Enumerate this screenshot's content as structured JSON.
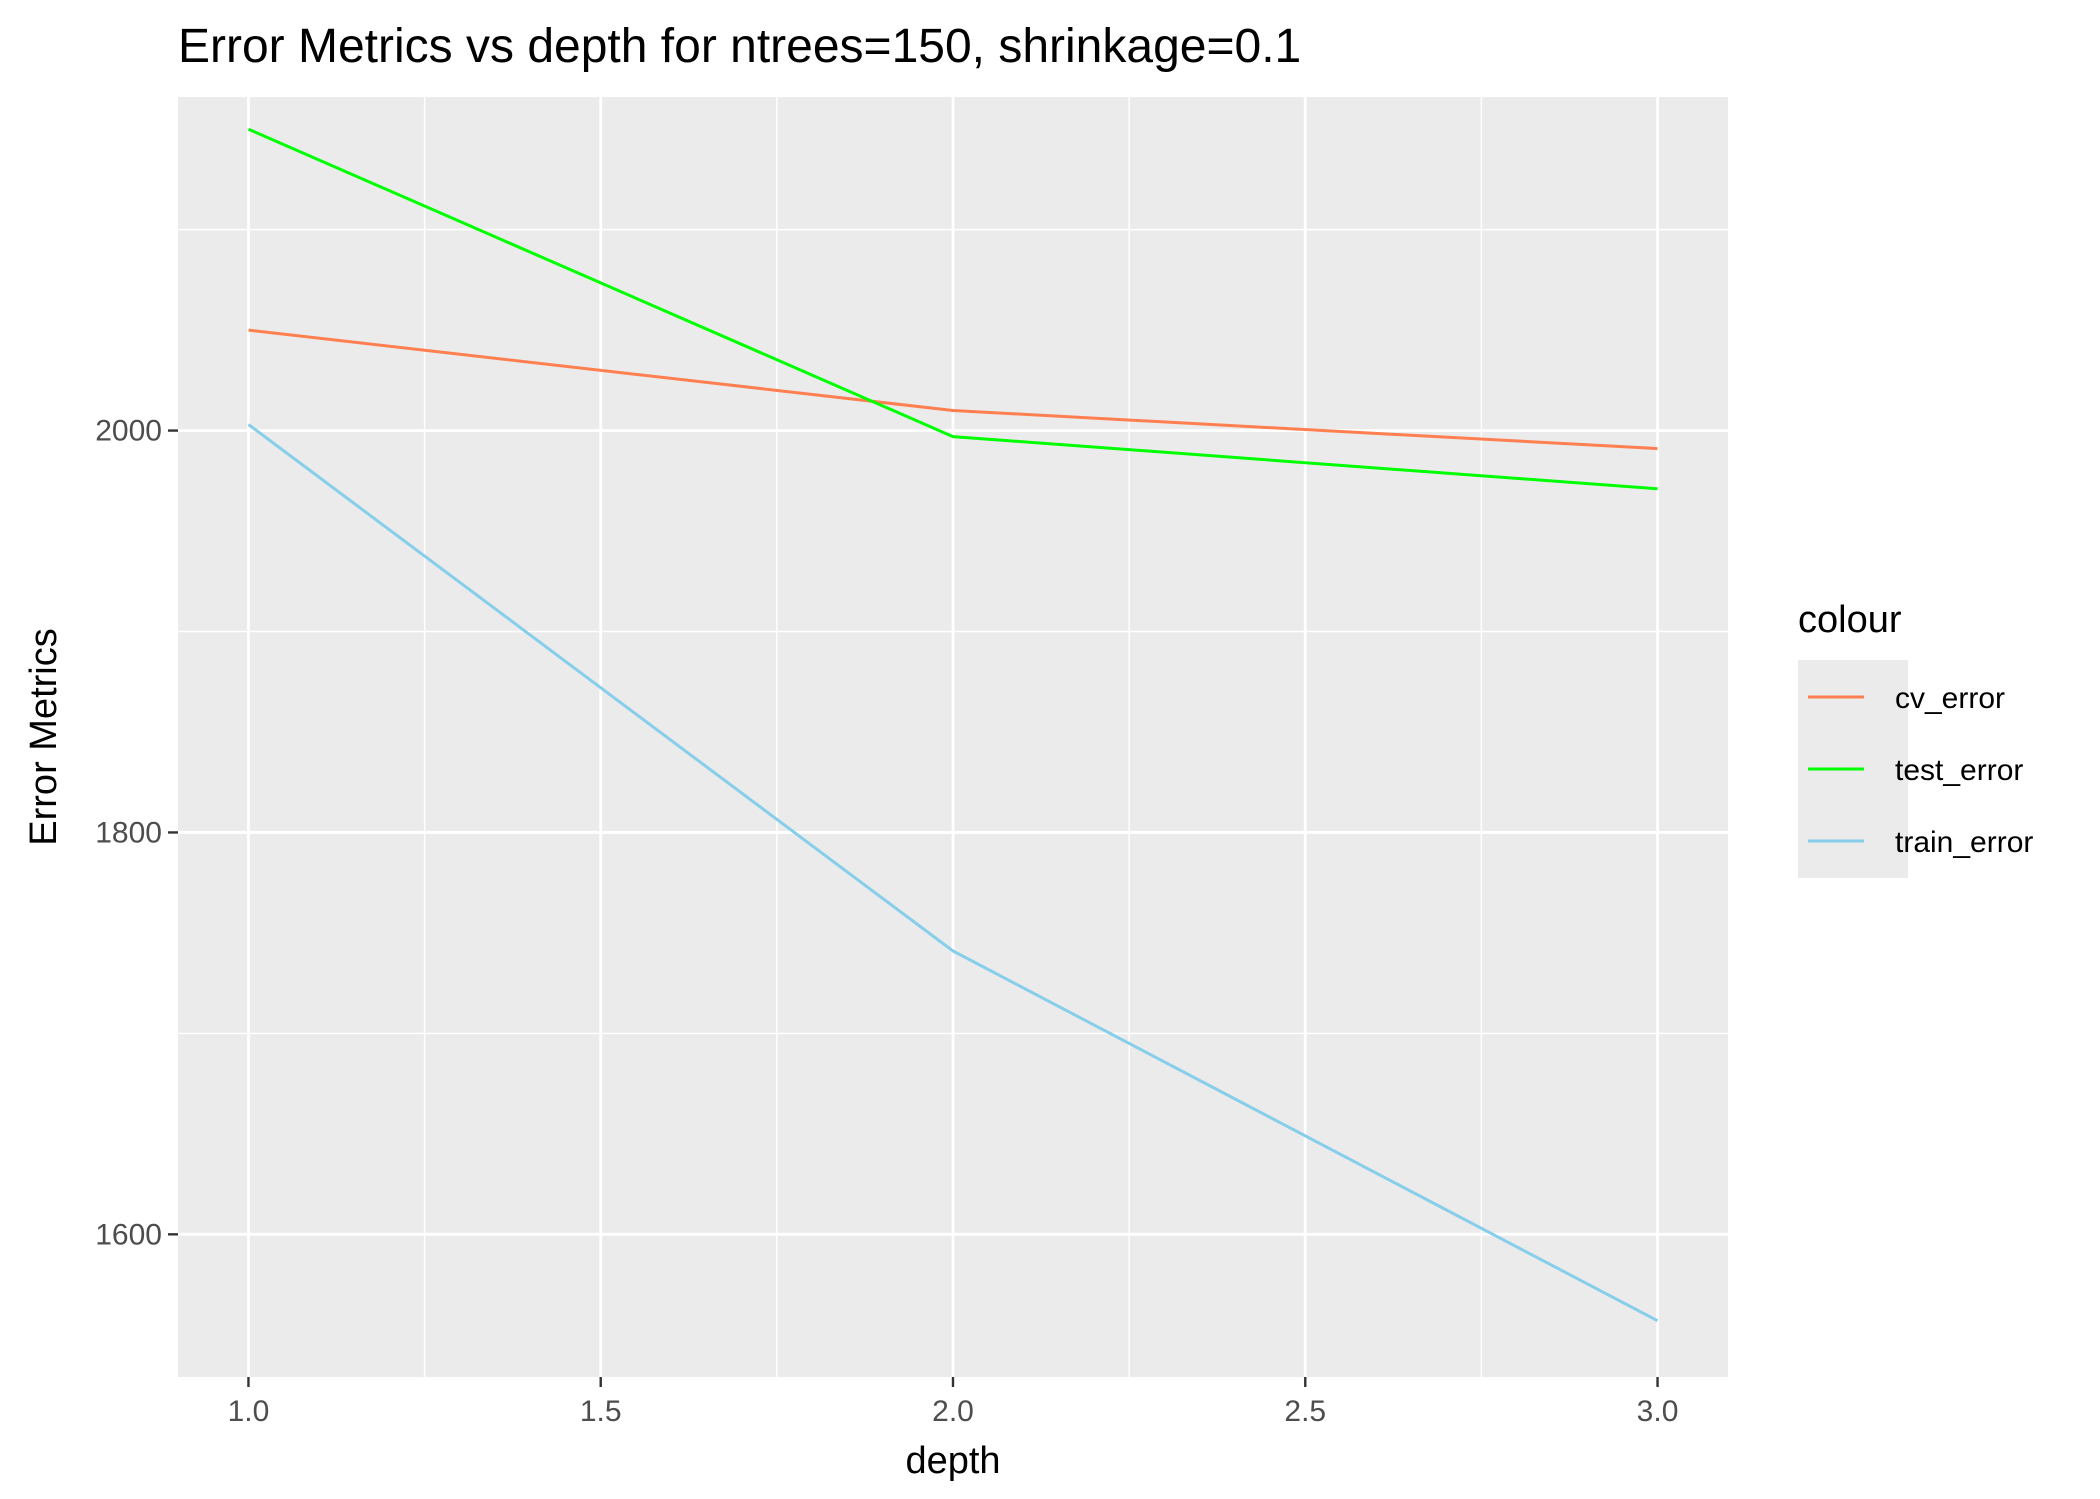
{
  "chart_data": {
    "type": "line",
    "title": "Error Metrics vs depth for ntrees=150, shrinkage=0.1",
    "xlabel": "depth",
    "ylabel": "Error Metrics",
    "x": [
      1.0,
      2.0,
      3.0
    ],
    "x_ticks": [
      "1.0",
      "1.5",
      "2.0",
      "2.5",
      "3.0"
    ],
    "y_ticks": [
      "1600",
      "1800",
      "2000"
    ],
    "xlim": [
      0.9,
      3.1
    ],
    "ylim": [
      1529,
      2166
    ],
    "series": [
      {
        "name": "cv_error",
        "color": "#FF7F50",
        "values": [
          2050,
          2010,
          1991
        ]
      },
      {
        "name": "test_error",
        "color": "#00FF00",
        "values": [
          2150,
          1997,
          1971
        ]
      },
      {
        "name": "train_error",
        "color": "#87CEEB",
        "values": [
          2003,
          1741,
          1557
        ]
      }
    ],
    "legend": {
      "title": "colour",
      "position": "right"
    },
    "grid": true,
    "panel_background": "#EBEBEB",
    "grid_color": "#FFFFFF"
  }
}
